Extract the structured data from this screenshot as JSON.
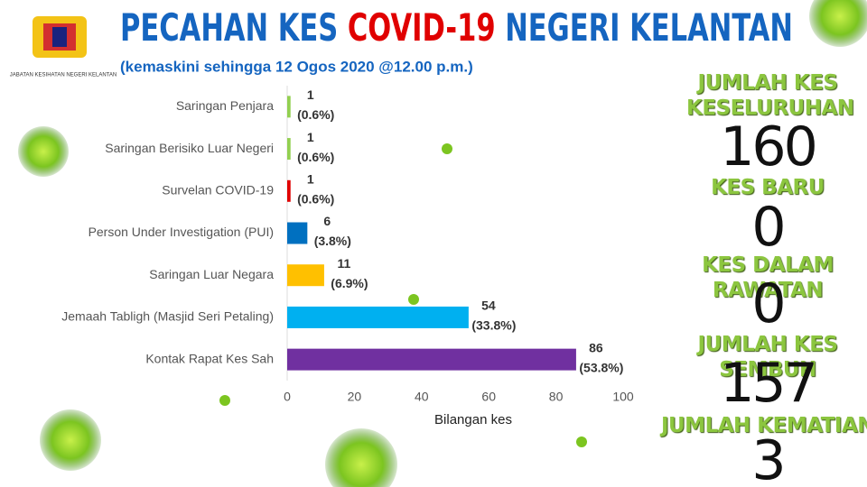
{
  "header": {
    "title": [
      "PECAHAN KES",
      "COVID-19",
      "NEGERI KELANTAN"
    ],
    "subtitle": "(kemaskini sehingga 12 Ogos 2020 @12.00 p.m.)",
    "logo_text": "JABATAN KESIHATAN NEGERI KELANTAN"
  },
  "chart_data": {
    "type": "hbar",
    "categories": [
      "Saringan Penjara",
      "Saringan Berisiko Luar Negeri",
      "Survelan COVID-19",
      "Person Under Investigation (PUI)",
      "Saringan Luar Negara",
      "Jemaah Tabligh (Masjid Seri Petaling)",
      "Kontak Rapat Kes Sah"
    ],
    "values": [
      1,
      1,
      1,
      6,
      11,
      54,
      86
    ],
    "percent_labels": [
      "(0.6%)",
      "(0.6%)",
      "(0.6%)",
      "(3.8%)",
      "(6.9%)",
      "(33.8%)",
      "(53.8%)"
    ],
    "colors": [
      "#92d050",
      "#92d050",
      "#e00000",
      "#0070c0",
      "#ffc000",
      "#00b0f0",
      "#7030a0"
    ],
    "xlim": [
      0,
      100
    ],
    "xticks": [
      0,
      20,
      40,
      60,
      80,
      100
    ],
    "x_label": "Bilangan kes"
  },
  "stats": [
    {
      "label": "JUMLAH KES KESELURUHAN",
      "value": "160"
    },
    {
      "label": "KES BARU",
      "value": "0"
    },
    {
      "label": "KES DALAM RAWATAN",
      "value": "0"
    },
    {
      "label": "JUMLAH KES SEMBUH",
      "value": "157"
    },
    {
      "label": "JUMLAH KEMATIAN",
      "value": "3"
    }
  ]
}
